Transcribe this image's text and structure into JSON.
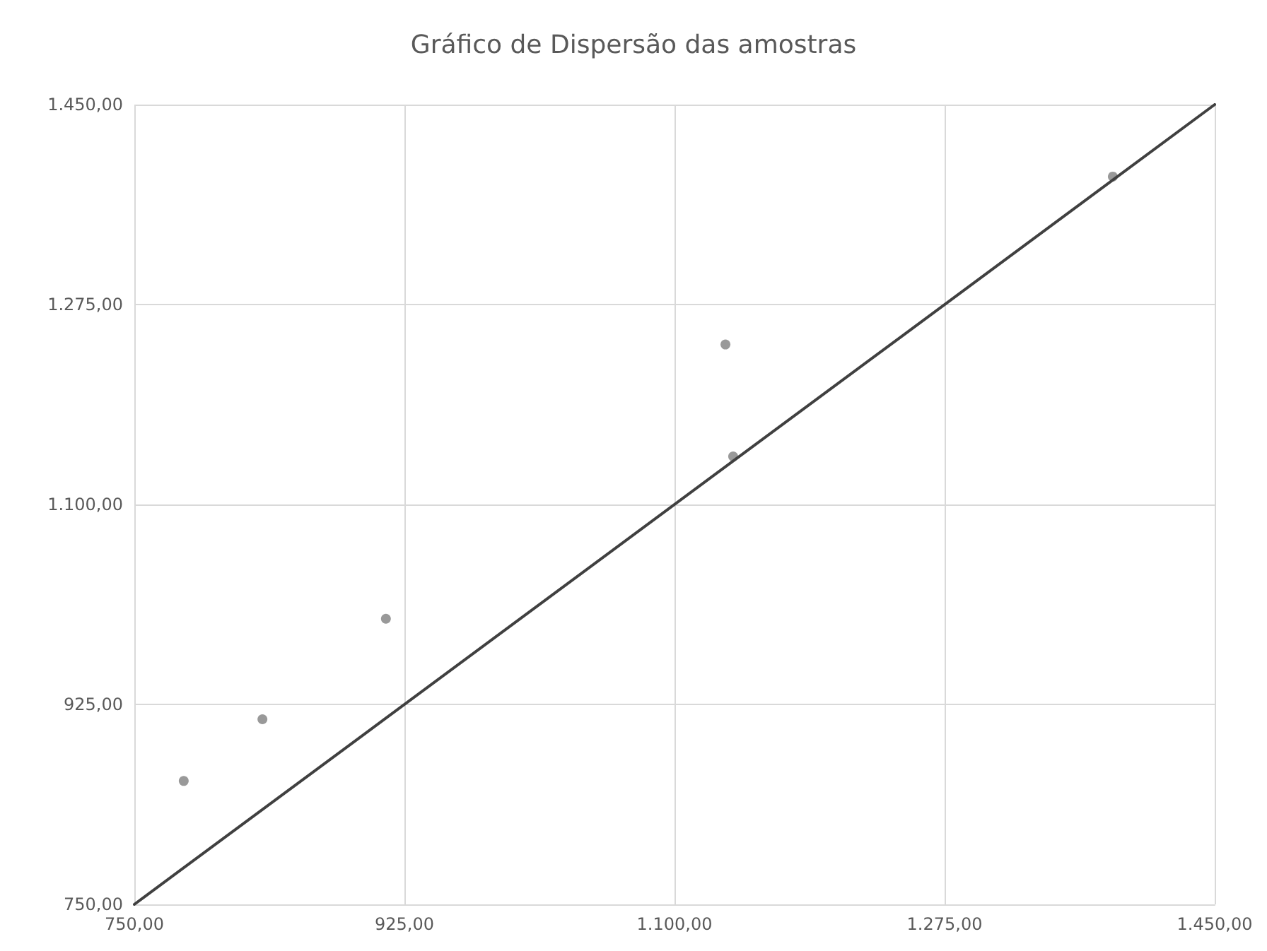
{
  "chart_data": {
    "type": "scatter",
    "title": "Gráfico de Dispersão das amostras",
    "x": [
      782,
      833,
      913,
      1133,
      1138,
      1384
    ],
    "series": [
      {
        "color": "#7f7f7f",
        "marker": "circle",
        "values": [
          858,
          912,
          1000,
          1240,
          1142,
          1387
        ]
      },
      {
        "type": "line",
        "color": "#404040",
        "marker": "none",
        "line_style": "solid",
        "x": [
          750,
          1450
        ],
        "values": [
          750,
          1450
        ]
      }
    ],
    "xlim": [
      750,
      1450
    ],
    "ylim": [
      750,
      1450
    ],
    "xticks": [
      {
        "value": 750,
        "label": "750,00"
      },
      {
        "value": 925,
        "label": "925,00"
      },
      {
        "value": 1100,
        "label": "1.100,00"
      },
      {
        "value": 1275,
        "label": "1.275,00"
      },
      {
        "value": 1450,
        "label": "1.450,00"
      }
    ],
    "yticks": [
      {
        "value": 750,
        "label": "750,00"
      },
      {
        "value": 925,
        "label": "925,00"
      },
      {
        "value": 1100,
        "label": "1.100,00"
      },
      {
        "value": 1275,
        "label": "1.275,00"
      },
      {
        "value": 1450,
        "label": "1.450,00"
      }
    ],
    "grid": true
  }
}
